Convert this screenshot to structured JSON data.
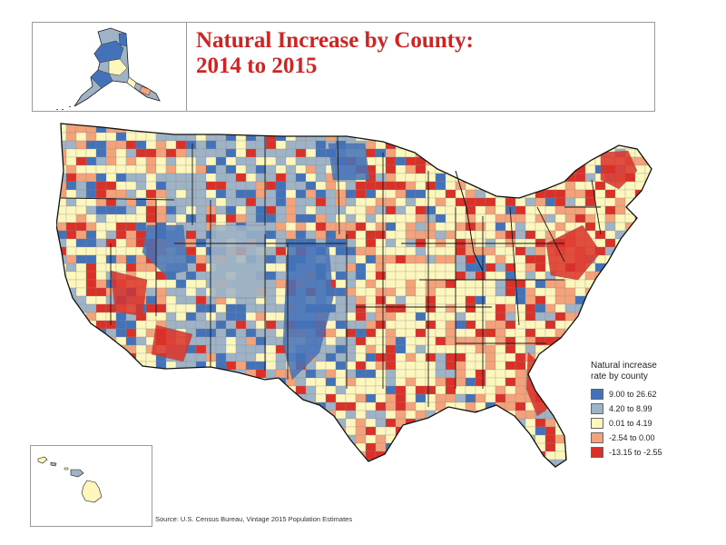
{
  "title": {
    "line1": "Natural Increase by County:",
    "line2": "2014 to 2015"
  },
  "legend": {
    "title_line1": "Natural increase",
    "title_line2": "rate by county",
    "classes": [
      {
        "label": "9.00 to 26.62",
        "color": "#4472b8"
      },
      {
        "label": "4.20 to 8.99",
        "color": "#9fb3c6"
      },
      {
        "label": "0.01 to 4.19",
        "color": "#fdf7be"
      },
      {
        "label": "-2.54 to 0.00",
        "color": "#f4a27a"
      },
      {
        "label": "-13.15 to -2.55",
        "color": "#da3028"
      }
    ]
  },
  "source": "Source: U.S. Census Bureau, Vintage 2015 Population Estimates",
  "map": {
    "regions": [
      "Contiguous United States",
      "Alaska",
      "Hawaii"
    ],
    "border_color": "#1a1a1a"
  }
}
